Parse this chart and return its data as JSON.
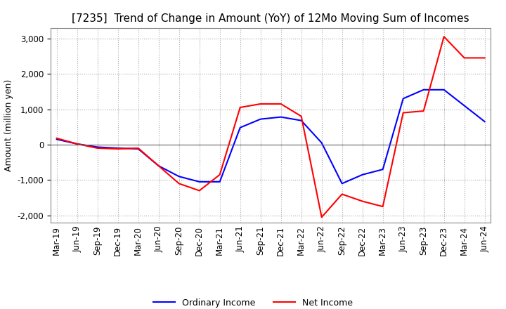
{
  "title": "[7235]  Trend of Change in Amount (YoY) of 12Mo Moving Sum of Incomes",
  "ylabel": "Amount (million yen)",
  "ylim": [
    -2200,
    3300
  ],
  "yticks": [
    -2000,
    -1000,
    0,
    1000,
    2000,
    3000
  ],
  "x_labels": [
    "Mar-19",
    "Jun-19",
    "Sep-19",
    "Dec-19",
    "Mar-20",
    "Jun-20",
    "Sep-20",
    "Dec-20",
    "Mar-21",
    "Jun-21",
    "Sep-21",
    "Dec-21",
    "Mar-22",
    "Jun-22",
    "Sep-22",
    "Dec-22",
    "Mar-23",
    "Jun-23",
    "Sep-23",
    "Dec-23",
    "Mar-24",
    "Jun-24"
  ],
  "ordinary_income": [
    150,
    20,
    -70,
    -100,
    -120,
    -600,
    -900,
    -1050,
    -1050,
    480,
    720,
    780,
    680,
    50,
    -1100,
    -850,
    -700,
    1300,
    1550,
    1550,
    1100,
    650
  ],
  "net_income": [
    180,
    20,
    -100,
    -120,
    -100,
    -600,
    -1100,
    -1300,
    -850,
    1050,
    1150,
    1150,
    800,
    -2050,
    -1400,
    -1600,
    -1750,
    900,
    950,
    3050,
    2450,
    2450
  ],
  "ordinary_color": "#0000ff",
  "net_color": "#ff0000",
  "grid_color": "#aaaaaa",
  "background_color": "#ffffff",
  "title_fontsize": 11,
  "label_fontsize": 9,
  "tick_fontsize": 8.5
}
